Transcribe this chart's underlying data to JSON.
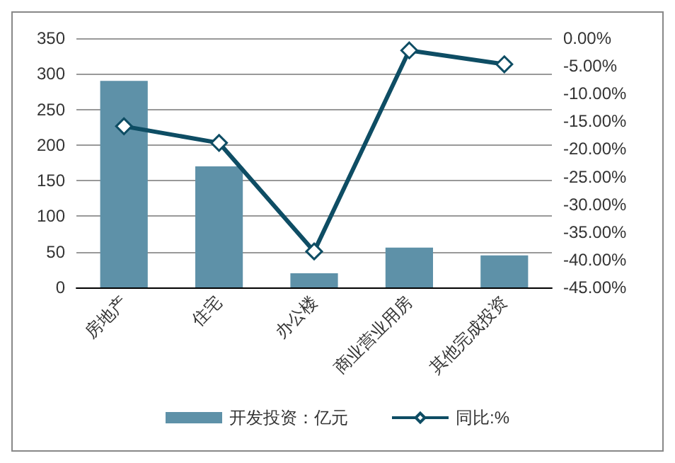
{
  "chart_data": {
    "type": "bar",
    "categories": [
      "房地产",
      "住宅",
      "办公楼",
      "商业营业用房",
      "其他完成投资"
    ],
    "series": [
      {
        "name": "开发投资：亿元",
        "color": "#5e91a8",
        "values": [
          290,
          170,
          20,
          56,
          45
        ]
      },
      {
        "name": "同比:%",
        "type": "line",
        "axis": "y2",
        "color": "#0e4d64",
        "values": [
          -15.9,
          -18.9,
          -38.5,
          -2.2,
          -4.7
        ]
      }
    ],
    "ylim": [
      0,
      350
    ],
    "yticks": [
      0,
      50,
      100,
      150,
      200,
      250,
      300,
      350
    ],
    "y2lim": [
      -45,
      0
    ],
    "y2ticks": [
      {
        "value": -45,
        "label": "-45.00%"
      },
      {
        "value": -40,
        "label": "-40.00%"
      },
      {
        "value": -35,
        "label": "-35.00%"
      },
      {
        "value": -30,
        "label": "-30.00%"
      },
      {
        "value": -25,
        "label": "-25.00%"
      },
      {
        "value": -20,
        "label": "-20.00%"
      },
      {
        "value": -15,
        "label": "-15.00%"
      },
      {
        "value": -10,
        "label": "-10.00%"
      },
      {
        "value": -5,
        "label": "-5.00%"
      },
      {
        "value": 0,
        "label": "0.00%"
      }
    ],
    "grid": "y",
    "legend": "bottom",
    "marker": "diamond",
    "line_style": "solid"
  }
}
